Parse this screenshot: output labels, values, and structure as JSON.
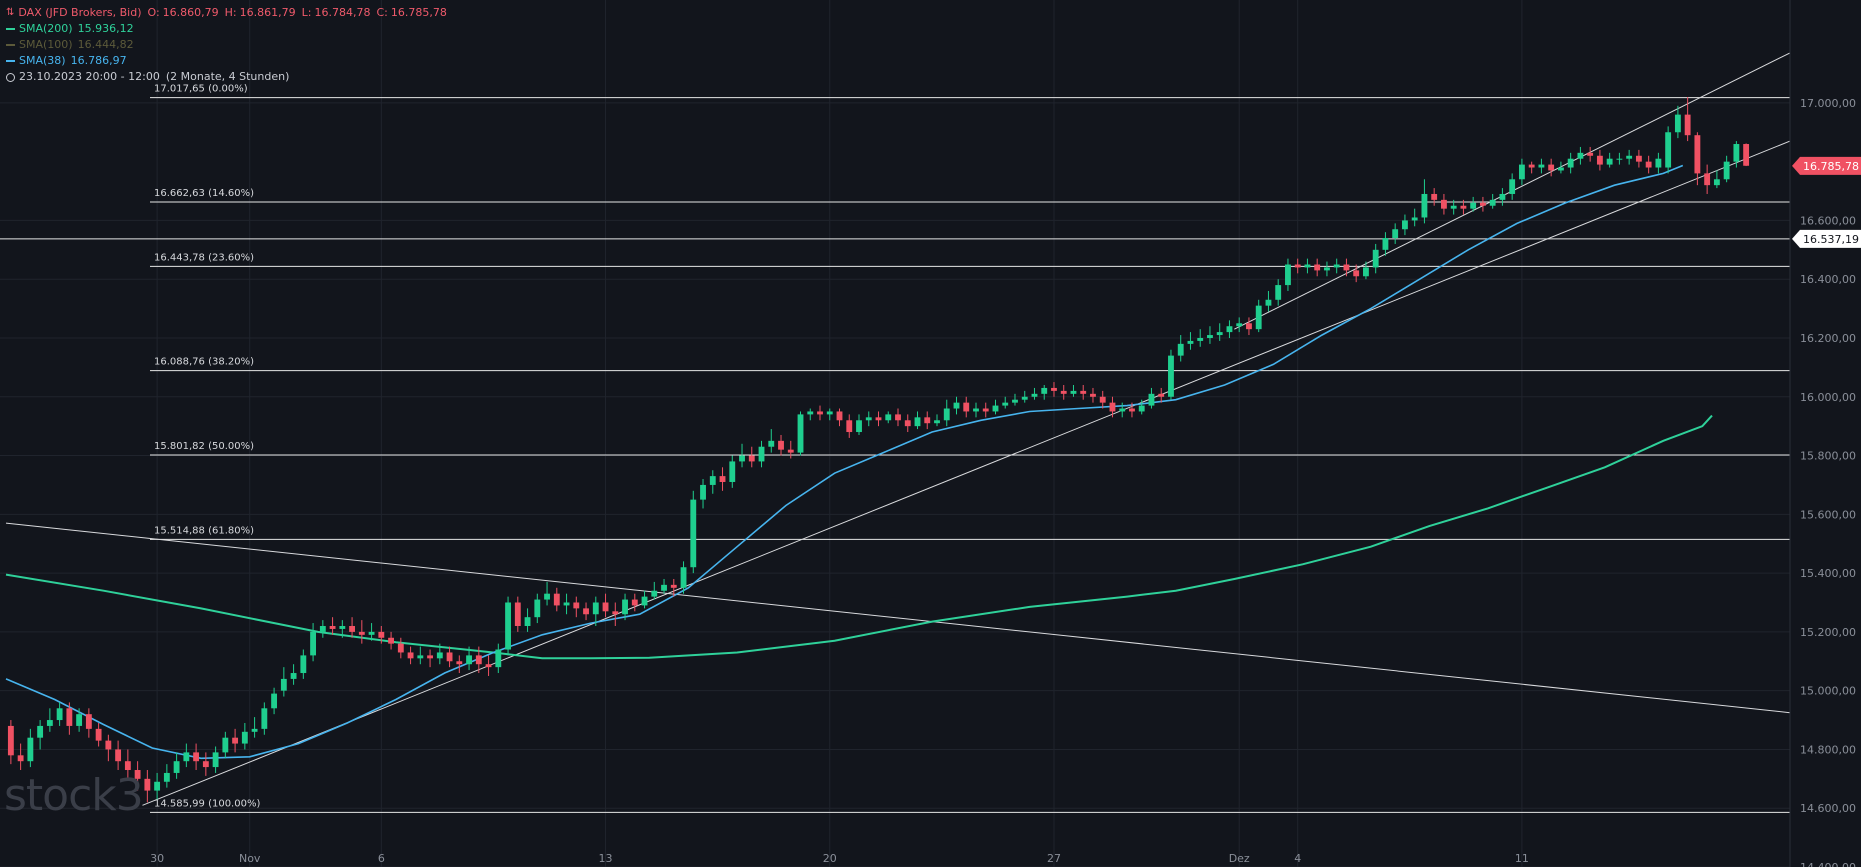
{
  "header": {
    "symbol": "DAX (JFD Brokers, Bid)",
    "ohlc": {
      "O": "16.860,79",
      "H": "16.861,79",
      "L": "16.784,78",
      "C": "16.785,78"
    },
    "indicators": [
      {
        "label": "SMA(200)",
        "value": "15.936,12",
        "color": "#2fd19a"
      },
      {
        "label": "SMA(100)",
        "value": "16.444,82",
        "color": "#5c5a3a"
      },
      {
        "label": "SMA(38)",
        "value": "16.786,97",
        "color": "#47b4ee"
      }
    ],
    "range": "23.10.2023 20:00 - 12:00",
    "range_note": "(2 Monate, 4 Stunden)"
  },
  "watermark": "stock3",
  "chart_data": {
    "type": "candlestick",
    "ylim": [
      14400,
      17350
    ],
    "y_ticks": [
      "14.400,00",
      "14.600,00",
      "14.800,00",
      "15.000,00",
      "15.200,00",
      "15.400,00",
      "15.600,00",
      "15.800,00",
      "16.000,00",
      "16.200,00",
      "16.400,00",
      "16.600,00",
      "17.000,00"
    ],
    "y_tick_values": [
      14400,
      14600,
      14800,
      15000,
      15200,
      15400,
      15600,
      15800,
      16000,
      16200,
      16400,
      16600,
      17000
    ],
    "x_ticks": [
      {
        "label": "30",
        "idx": 15.5
      },
      {
        "label": "Nov",
        "idx": 25
      },
      {
        "label": "6",
        "idx": 38.5
      },
      {
        "label": "13",
        "idx": 61.5
      },
      {
        "label": "20",
        "idx": 84.5
      },
      {
        "label": "27",
        "idx": 107.5
      },
      {
        "label": "Dez",
        "idx": 126.5
      },
      {
        "label": "4",
        "idx": 132.5
      },
      {
        "label": "11",
        "idx": 155.5
      }
    ],
    "x_range": [
      0,
      183
    ],
    "last_price": {
      "value": 16785.78,
      "label": "16.785,78",
      "color": "#f05163"
    },
    "marker": {
      "value": 16537.19,
      "label": "16.537,19"
    },
    "fibonacci": [
      {
        "value": 17017.65,
        "label": "17.017,65 (0.00%)"
      },
      {
        "value": 16662.63,
        "label": "16.662,63 (14.60%)"
      },
      {
        "value": 16443.78,
        "label": "16.443,78 (23.60%)"
      },
      {
        "value": 16088.76,
        "label": "16.088,76 (38.20%)"
      },
      {
        "value": 15801.82,
        "label": "15.801,82 (50.00%)"
      },
      {
        "value": 15514.88,
        "label": "15.514,88 (61.80%)"
      },
      {
        "value": 14585.99,
        "label": "14.585,99 (100.00%)"
      }
    ],
    "trendlines": [
      {
        "from": [
          0,
          15570
        ],
        "to": [
          183,
          14925
        ]
      },
      {
        "from": [
          14,
          14610
        ],
        "to": [
          183,
          16870
        ]
      },
      {
        "from": [
          126,
          16230
        ],
        "to": [
          183,
          17170
        ]
      }
    ],
    "sma200": [
      [
        0,
        15395
      ],
      [
        10,
        15340
      ],
      [
        20,
        15280
      ],
      [
        32,
        15200
      ],
      [
        40,
        15165
      ],
      [
        50,
        15130
      ],
      [
        55,
        15110
      ],
      [
        60,
        15110
      ],
      [
        66,
        15112
      ],
      [
        75,
        15130
      ],
      [
        85,
        15170
      ],
      [
        95,
        15235
      ],
      [
        105,
        15285
      ],
      [
        115,
        15320
      ],
      [
        120,
        15340
      ],
      [
        126,
        15380
      ],
      [
        133,
        15430
      ],
      [
        140,
        15490
      ],
      [
        146,
        15560
      ],
      [
        152,
        15620
      ],
      [
        158,
        15690
      ],
      [
        164,
        15760
      ],
      [
        170,
        15850
      ],
      [
        174,
        15900
      ],
      [
        175,
        15936
      ]
    ],
    "sma38": [
      [
        0,
        15040
      ],
      [
        5,
        14970
      ],
      [
        10,
        14885
      ],
      [
        15,
        14805
      ],
      [
        20,
        14770
      ],
      [
        25,
        14775
      ],
      [
        30,
        14820
      ],
      [
        35,
        14890
      ],
      [
        40,
        14970
      ],
      [
        45,
        15060
      ],
      [
        50,
        15130
      ],
      [
        55,
        15190
      ],
      [
        60,
        15230
      ],
      [
        65,
        15260
      ],
      [
        70,
        15350
      ],
      [
        75,
        15490
      ],
      [
        80,
        15630
      ],
      [
        85,
        15740
      ],
      [
        90,
        15810
      ],
      [
        95,
        15880
      ],
      [
        100,
        15920
      ],
      [
        105,
        15950
      ],
      [
        110,
        15960
      ],
      [
        115,
        15970
      ],
      [
        120,
        15990
      ],
      [
        125,
        16040
      ],
      [
        130,
        16110
      ],
      [
        135,
        16210
      ],
      [
        140,
        16300
      ],
      [
        145,
        16400
      ],
      [
        150,
        16500
      ],
      [
        155,
        16590
      ],
      [
        160,
        16660
      ],
      [
        165,
        16720
      ],
      [
        170,
        16760
      ],
      [
        172,
        16787
      ]
    ],
    "candles": [
      [
        14880,
        14780,
        14900,
        14750
      ],
      [
        14780,
        14760,
        14820,
        14730
      ],
      [
        14760,
        14840,
        14870,
        14740
      ],
      [
        14840,
        14880,
        14900,
        14800
      ],
      [
        14880,
        14900,
        14940,
        14860
      ],
      [
        14900,
        14940,
        14960,
        14880
      ],
      [
        14940,
        14880,
        14960,
        14850
      ],
      [
        14880,
        14920,
        14940,
        14860
      ],
      [
        14920,
        14870,
        14940,
        14840
      ],
      [
        14870,
        14830,
        14890,
        14810
      ],
      [
        14830,
        14800,
        14850,
        14760
      ],
      [
        14800,
        14760,
        14830,
        14730
      ],
      [
        14760,
        14730,
        14800,
        14700
      ],
      [
        14730,
        14700,
        14760,
        14660
      ],
      [
        14700,
        14660,
        14730,
        14620
      ],
      [
        14660,
        14690,
        14720,
        14630
      ],
      [
        14690,
        14720,
        14750,
        14670
      ],
      [
        14720,
        14760,
        14790,
        14700
      ],
      [
        14760,
        14790,
        14820,
        14740
      ],
      [
        14790,
        14760,
        14820,
        14730
      ],
      [
        14760,
        14740,
        14790,
        14710
      ],
      [
        14740,
        14790,
        14810,
        14720
      ],
      [
        14790,
        14840,
        14860,
        14770
      ],
      [
        14840,
        14820,
        14870,
        14790
      ],
      [
        14820,
        14860,
        14890,
        14800
      ],
      [
        14860,
        14870,
        14910,
        14840
      ],
      [
        14870,
        14940,
        14960,
        14850
      ],
      [
        14940,
        14990,
        15010,
        14920
      ],
      [
        15000,
        15040,
        15080,
        14980
      ],
      [
        15040,
        15060,
        15090,
        15020
      ],
      [
        15060,
        15120,
        15140,
        15040
      ],
      [
        15120,
        15200,
        15230,
        15100
      ],
      [
        15200,
        15220,
        15240,
        15180
      ],
      [
        15220,
        15210,
        15250,
        15190
      ],
      [
        15210,
        15220,
        15240,
        15180
      ],
      [
        15220,
        15200,
        15250,
        15180
      ],
      [
        15200,
        15190,
        15240,
        15160
      ],
      [
        15190,
        15200,
        15230,
        15170
      ],
      [
        15200,
        15180,
        15220,
        15160
      ],
      [
        15180,
        15160,
        15200,
        15140
      ],
      [
        15160,
        15130,
        15180,
        15110
      ],
      [
        15130,
        15110,
        15150,
        15090
      ],
      [
        15110,
        15120,
        15150,
        15090
      ],
      [
        15120,
        15110,
        15140,
        15080
      ],
      [
        15110,
        15130,
        15160,
        15090
      ],
      [
        15130,
        15100,
        15150,
        15080
      ],
      [
        15100,
        15090,
        15120,
        15060
      ],
      [
        15090,
        15120,
        15150,
        15070
      ],
      [
        15120,
        15090,
        15150,
        15060
      ],
      [
        15090,
        15080,
        15120,
        15050
      ],
      [
        15080,
        15140,
        15160,
        15060
      ],
      [
        15140,
        15300,
        15320,
        15120
      ],
      [
        15300,
        15220,
        15320,
        15200
      ],
      [
        15220,
        15250,
        15280,
        15200
      ],
      [
        15250,
        15310,
        15330,
        15230
      ],
      [
        15310,
        15330,
        15370,
        15290
      ],
      [
        15330,
        15290,
        15350,
        15270
      ],
      [
        15290,
        15300,
        15330,
        15260
      ],
      [
        15300,
        15280,
        15320,
        15250
      ],
      [
        15280,
        15260,
        15300,
        15240
      ],
      [
        15260,
        15300,
        15320,
        15220
      ],
      [
        15300,
        15270,
        15330,
        15250
      ],
      [
        15270,
        15260,
        15300,
        15220
      ],
      [
        15260,
        15310,
        15330,
        15240
      ],
      [
        15310,
        15290,
        15330,
        15270
      ],
      [
        15290,
        15320,
        15340,
        15280
      ],
      [
        15320,
        15340,
        15370,
        15310
      ],
      [
        15340,
        15360,
        15380,
        15330
      ],
      [
        15360,
        15350,
        15380,
        15320
      ],
      [
        15350,
        15420,
        15440,
        15330
      ],
      [
        15420,
        15650,
        15680,
        15400
      ],
      [
        15650,
        15700,
        15720,
        15620
      ],
      [
        15700,
        15730,
        15750,
        15670
      ],
      [
        15730,
        15710,
        15760,
        15680
      ],
      [
        15710,
        15780,
        15800,
        15690
      ],
      [
        15780,
        15800,
        15840,
        15760
      ],
      [
        15800,
        15780,
        15830,
        15760
      ],
      [
        15780,
        15830,
        15850,
        15760
      ],
      [
        15830,
        15850,
        15890,
        15810
      ],
      [
        15850,
        15820,
        15870,
        15800
      ],
      [
        15820,
        15810,
        15850,
        15790
      ],
      [
        15810,
        15940,
        15950,
        15800
      ],
      [
        15940,
        15950,
        15960,
        15920
      ],
      [
        15950,
        15940,
        15970,
        15920
      ],
      [
        15940,
        15950,
        15960,
        15920
      ],
      [
        15950,
        15920,
        15960,
        15900
      ],
      [
        15920,
        15880,
        15940,
        15860
      ],
      [
        15880,
        15920,
        15940,
        15870
      ],
      [
        15920,
        15930,
        15950,
        15900
      ],
      [
        15930,
        15920,
        15950,
        15900
      ],
      [
        15920,
        15940,
        15950,
        15910
      ],
      [
        15940,
        15920,
        15960,
        15900
      ],
      [
        15920,
        15900,
        15940,
        15880
      ],
      [
        15900,
        15930,
        15950,
        15890
      ],
      [
        15930,
        15910,
        15950,
        15890
      ],
      [
        15910,
        15920,
        15940,
        15900
      ],
      [
        15920,
        15960,
        15990,
        15900
      ],
      [
        15960,
        15980,
        16000,
        15940
      ],
      [
        15980,
        15950,
        16000,
        15930
      ],
      [
        15950,
        15960,
        15980,
        15930
      ],
      [
        15960,
        15950,
        15980,
        15930
      ],
      [
        15950,
        15970,
        15990,
        15940
      ],
      [
        15970,
        15980,
        16000,
        15960
      ],
      [
        15980,
        15990,
        16010,
        15970
      ],
      [
        15990,
        16000,
        16020,
        15980
      ],
      [
        16000,
        16010,
        16030,
        15990
      ],
      [
        16010,
        16030,
        16040,
        15990
      ],
      [
        16030,
        16020,
        16050,
        16000
      ],
      [
        16020,
        16010,
        16040,
        15990
      ],
      [
        16010,
        16020,
        16040,
        16000
      ],
      [
        16020,
        16010,
        16040,
        15990
      ],
      [
        16010,
        16000,
        16030,
        15980
      ],
      [
        16000,
        15980,
        16020,
        15960
      ],
      [
        15980,
        15950,
        16000,
        15930
      ],
      [
        15950,
        15960,
        15980,
        15930
      ],
      [
        15960,
        15950,
        15980,
        15930
      ],
      [
        15950,
        15970,
        15990,
        15940
      ],
      [
        15970,
        16010,
        16030,
        15960
      ],
      [
        16010,
        16000,
        16030,
        15980
      ],
      [
        16000,
        16140,
        16160,
        15990
      ],
      [
        16140,
        16180,
        16210,
        16120
      ],
      [
        16180,
        16190,
        16220,
        16160
      ],
      [
        16190,
        16200,
        16230,
        16170
      ],
      [
        16200,
        16210,
        16240,
        16180
      ],
      [
        16210,
        16220,
        16250,
        16190
      ],
      [
        16220,
        16240,
        16260,
        16200
      ],
      [
        16240,
        16250,
        16270,
        16220
      ],
      [
        16250,
        16230,
        16270,
        16210
      ],
      [
        16230,
        16310,
        16330,
        16220
      ],
      [
        16310,
        16330,
        16360,
        16290
      ],
      [
        16330,
        16380,
        16400,
        16310
      ],
      [
        16380,
        16450,
        16470,
        16360
      ],
      [
        16450,
        16440,
        16470,
        16420
      ],
      [
        16440,
        16450,
        16470,
        16420
      ],
      [
        16450,
        16430,
        16470,
        16410
      ],
      [
        16430,
        16440,
        16460,
        16410
      ],
      [
        16440,
        16450,
        16470,
        16420
      ],
      [
        16450,
        16430,
        16470,
        16410
      ],
      [
        16430,
        16410,
        16450,
        16390
      ],
      [
        16410,
        16440,
        16460,
        16400
      ],
      [
        16440,
        16500,
        16520,
        16420
      ],
      [
        16500,
        16540,
        16560,
        16480
      ],
      [
        16540,
        16570,
        16590,
        16520
      ],
      [
        16570,
        16600,
        16620,
        16550
      ],
      [
        16600,
        16610,
        16640,
        16580
      ],
      [
        16610,
        16690,
        16740,
        16590
      ],
      [
        16690,
        16670,
        16710,
        16650
      ],
      [
        16670,
        16640,
        16690,
        16620
      ],
      [
        16640,
        16650,
        16670,
        16620
      ],
      [
        16650,
        16640,
        16670,
        16620
      ],
      [
        16640,
        16660,
        16680,
        16630
      ],
      [
        16660,
        16650,
        16680,
        16630
      ],
      [
        16650,
        16670,
        16690,
        16640
      ],
      [
        16670,
        16690,
        16710,
        16650
      ],
      [
        16690,
        16740,
        16760,
        16670
      ],
      [
        16740,
        16790,
        16810,
        16720
      ],
      [
        16790,
        16780,
        16800,
        16760
      ],
      [
        16780,
        16790,
        16810,
        16760
      ],
      [
        16790,
        16770,
        16810,
        16750
      ],
      [
        16770,
        16780,
        16800,
        16760
      ],
      [
        16780,
        16810,
        16830,
        16760
      ],
      [
        16810,
        16830,
        16850,
        16790
      ],
      [
        16830,
        16820,
        16850,
        16800
      ],
      [
        16820,
        16790,
        16840,
        16770
      ],
      [
        16790,
        16810,
        16830,
        16780
      ],
      [
        16810,
        16810,
        16830,
        16790
      ],
      [
        16810,
        16820,
        16840,
        16790
      ],
      [
        16820,
        16800,
        16840,
        16780
      ],
      [
        16800,
        16780,
        16820,
        16760
      ],
      [
        16780,
        16810,
        16830,
        16760
      ],
      [
        16780,
        16900,
        16920,
        16760
      ],
      [
        16900,
        16960,
        16990,
        16880
      ],
      [
        16960,
        16890,
        17020,
        16870
      ],
      [
        16890,
        16760,
        16900,
        16720
      ],
      [
        16760,
        16720,
        16790,
        16690
      ],
      [
        16720,
        16740,
        16770,
        16710
      ],
      [
        16740,
        16800,
        16820,
        16730
      ],
      [
        16800,
        16860,
        16870,
        16780
      ],
      [
        16860,
        16786,
        16862,
        16785
      ]
    ]
  }
}
